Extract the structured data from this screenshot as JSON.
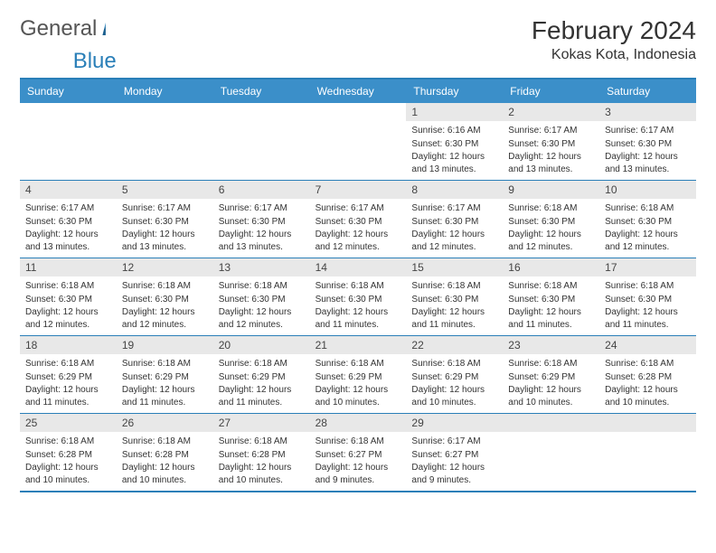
{
  "logo": {
    "text1": "General",
    "text2": "Blue"
  },
  "title": "February 2024",
  "location": "Kokas Kota, Indonesia",
  "colors": {
    "header_bg": "#3b8fc9",
    "border": "#2a7fb8",
    "daynum_bg": "#e8e8e8",
    "text": "#333333",
    "header_text": "#ffffff"
  },
  "fonts": {
    "title_size": 28,
    "location_size": 16,
    "header_size": 12,
    "body_size": 10
  },
  "day_names": [
    "Sunday",
    "Monday",
    "Tuesday",
    "Wednesday",
    "Thursday",
    "Friday",
    "Saturday"
  ],
  "weeks": [
    [
      {
        "empty": true
      },
      {
        "empty": true
      },
      {
        "empty": true
      },
      {
        "empty": true
      },
      {
        "day": "1",
        "sunrise": "Sunrise: 6:16 AM",
        "sunset": "Sunset: 6:30 PM",
        "daylight": "Daylight: 12 hours and 13 minutes."
      },
      {
        "day": "2",
        "sunrise": "Sunrise: 6:17 AM",
        "sunset": "Sunset: 6:30 PM",
        "daylight": "Daylight: 12 hours and 13 minutes."
      },
      {
        "day": "3",
        "sunrise": "Sunrise: 6:17 AM",
        "sunset": "Sunset: 6:30 PM",
        "daylight": "Daylight: 12 hours and 13 minutes."
      }
    ],
    [
      {
        "day": "4",
        "sunrise": "Sunrise: 6:17 AM",
        "sunset": "Sunset: 6:30 PM",
        "daylight": "Daylight: 12 hours and 13 minutes."
      },
      {
        "day": "5",
        "sunrise": "Sunrise: 6:17 AM",
        "sunset": "Sunset: 6:30 PM",
        "daylight": "Daylight: 12 hours and 13 minutes."
      },
      {
        "day": "6",
        "sunrise": "Sunrise: 6:17 AM",
        "sunset": "Sunset: 6:30 PM",
        "daylight": "Daylight: 12 hours and 13 minutes."
      },
      {
        "day": "7",
        "sunrise": "Sunrise: 6:17 AM",
        "sunset": "Sunset: 6:30 PM",
        "daylight": "Daylight: 12 hours and 12 minutes."
      },
      {
        "day": "8",
        "sunrise": "Sunrise: 6:17 AM",
        "sunset": "Sunset: 6:30 PM",
        "daylight": "Daylight: 12 hours and 12 minutes."
      },
      {
        "day": "9",
        "sunrise": "Sunrise: 6:18 AM",
        "sunset": "Sunset: 6:30 PM",
        "daylight": "Daylight: 12 hours and 12 minutes."
      },
      {
        "day": "10",
        "sunrise": "Sunrise: 6:18 AM",
        "sunset": "Sunset: 6:30 PM",
        "daylight": "Daylight: 12 hours and 12 minutes."
      }
    ],
    [
      {
        "day": "11",
        "sunrise": "Sunrise: 6:18 AM",
        "sunset": "Sunset: 6:30 PM",
        "daylight": "Daylight: 12 hours and 12 minutes."
      },
      {
        "day": "12",
        "sunrise": "Sunrise: 6:18 AM",
        "sunset": "Sunset: 6:30 PM",
        "daylight": "Daylight: 12 hours and 12 minutes."
      },
      {
        "day": "13",
        "sunrise": "Sunrise: 6:18 AM",
        "sunset": "Sunset: 6:30 PM",
        "daylight": "Daylight: 12 hours and 12 minutes."
      },
      {
        "day": "14",
        "sunrise": "Sunrise: 6:18 AM",
        "sunset": "Sunset: 6:30 PM",
        "daylight": "Daylight: 12 hours and 11 minutes."
      },
      {
        "day": "15",
        "sunrise": "Sunrise: 6:18 AM",
        "sunset": "Sunset: 6:30 PM",
        "daylight": "Daylight: 12 hours and 11 minutes."
      },
      {
        "day": "16",
        "sunrise": "Sunrise: 6:18 AM",
        "sunset": "Sunset: 6:30 PM",
        "daylight": "Daylight: 12 hours and 11 minutes."
      },
      {
        "day": "17",
        "sunrise": "Sunrise: 6:18 AM",
        "sunset": "Sunset: 6:30 PM",
        "daylight": "Daylight: 12 hours and 11 minutes."
      }
    ],
    [
      {
        "day": "18",
        "sunrise": "Sunrise: 6:18 AM",
        "sunset": "Sunset: 6:29 PM",
        "daylight": "Daylight: 12 hours and 11 minutes."
      },
      {
        "day": "19",
        "sunrise": "Sunrise: 6:18 AM",
        "sunset": "Sunset: 6:29 PM",
        "daylight": "Daylight: 12 hours and 11 minutes."
      },
      {
        "day": "20",
        "sunrise": "Sunrise: 6:18 AM",
        "sunset": "Sunset: 6:29 PM",
        "daylight": "Daylight: 12 hours and 11 minutes."
      },
      {
        "day": "21",
        "sunrise": "Sunrise: 6:18 AM",
        "sunset": "Sunset: 6:29 PM",
        "daylight": "Daylight: 12 hours and 10 minutes."
      },
      {
        "day": "22",
        "sunrise": "Sunrise: 6:18 AM",
        "sunset": "Sunset: 6:29 PM",
        "daylight": "Daylight: 12 hours and 10 minutes."
      },
      {
        "day": "23",
        "sunrise": "Sunrise: 6:18 AM",
        "sunset": "Sunset: 6:29 PM",
        "daylight": "Daylight: 12 hours and 10 minutes."
      },
      {
        "day": "24",
        "sunrise": "Sunrise: 6:18 AM",
        "sunset": "Sunset: 6:28 PM",
        "daylight": "Daylight: 12 hours and 10 minutes."
      }
    ],
    [
      {
        "day": "25",
        "sunrise": "Sunrise: 6:18 AM",
        "sunset": "Sunset: 6:28 PM",
        "daylight": "Daylight: 12 hours and 10 minutes."
      },
      {
        "day": "26",
        "sunrise": "Sunrise: 6:18 AM",
        "sunset": "Sunset: 6:28 PM",
        "daylight": "Daylight: 12 hours and 10 minutes."
      },
      {
        "day": "27",
        "sunrise": "Sunrise: 6:18 AM",
        "sunset": "Sunset: 6:28 PM",
        "daylight": "Daylight: 12 hours and 10 minutes."
      },
      {
        "day": "28",
        "sunrise": "Sunrise: 6:18 AM",
        "sunset": "Sunset: 6:27 PM",
        "daylight": "Daylight: 12 hours and 9 minutes."
      },
      {
        "day": "29",
        "sunrise": "Sunrise: 6:17 AM",
        "sunset": "Sunset: 6:27 PM",
        "daylight": "Daylight: 12 hours and 9 minutes."
      },
      {
        "trailing": true
      },
      {
        "trailing": true
      }
    ]
  ]
}
